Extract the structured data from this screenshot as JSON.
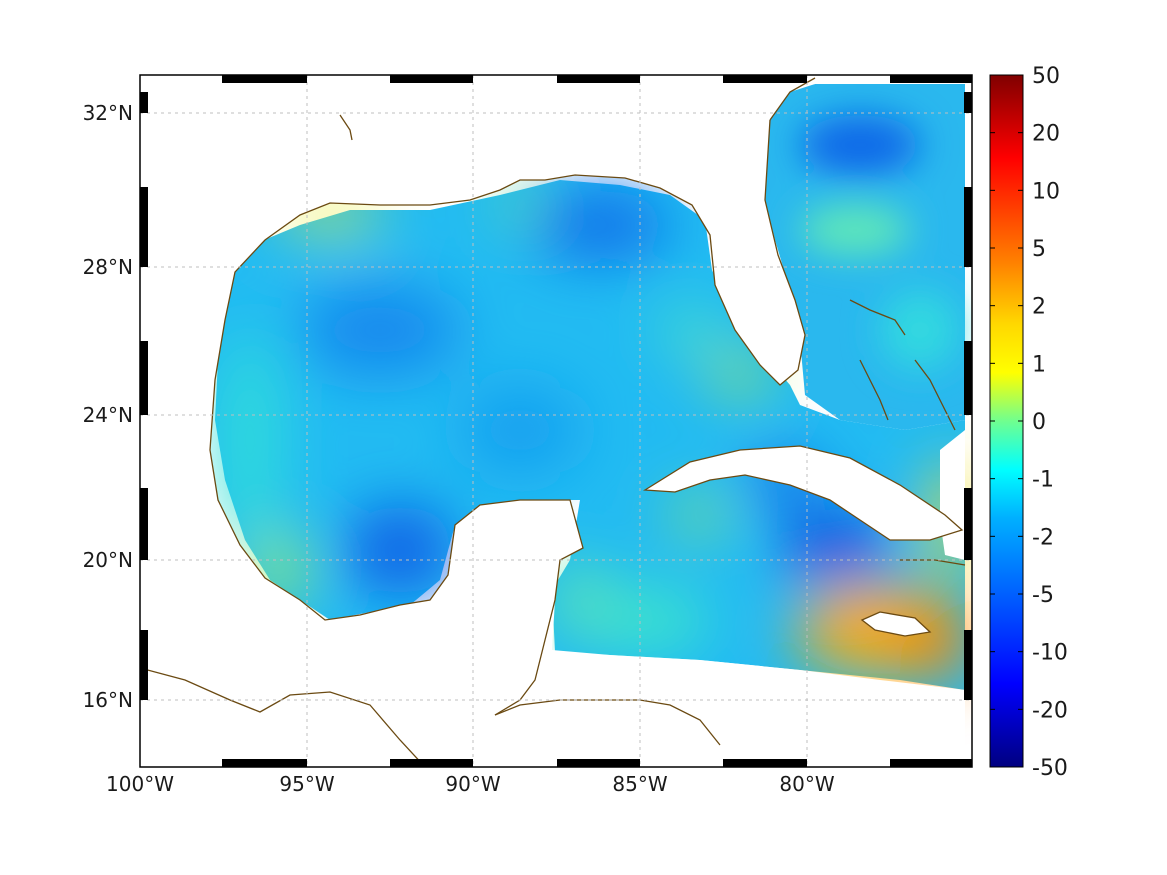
{
  "map": {
    "title": "",
    "lon_ticks": [
      "100°W",
      "95°W",
      "90°W",
      "85°W",
      "80°W"
    ],
    "lat_ticks": [
      "32°N",
      "28°N",
      "24°N",
      "20°N",
      "16°N"
    ],
    "extent": {
      "lon_min": -100,
      "lon_max": -75,
      "lat_min": 14.5,
      "lat_max": 33
    },
    "colormap": "jet",
    "coast_color": "#6b4a12",
    "gridlines": true,
    "frame": "black-white checkered border"
  },
  "chart_data": {
    "type": "heatmap",
    "colorbar": {
      "tick_labels": [
        "50",
        "20",
        "10",
        "5",
        "2",
        "1",
        "0",
        "-1",
        "-2",
        "-5",
        "-10",
        "-20",
        "-50"
      ],
      "range": [
        -50,
        50
      ],
      "scale": "symmetric-log"
    },
    "regions": [
      {
        "region": "Gulf of Mexico interior",
        "value": -2.5
      },
      {
        "region": "Bay of Campeche",
        "value": -5
      },
      {
        "region": "Northeast Gulf",
        "value": -4
      },
      {
        "region": "Western Gulf coast",
        "value": 0
      },
      {
        "region": "Atlantic east of Florida",
        "value": -3
      },
      {
        "region": "South of Cuba",
        "value": -6
      },
      {
        "region": "Around Jamaica",
        "value": 5
      },
      {
        "region": "Caribbean south edge",
        "value": 1
      }
    ]
  }
}
